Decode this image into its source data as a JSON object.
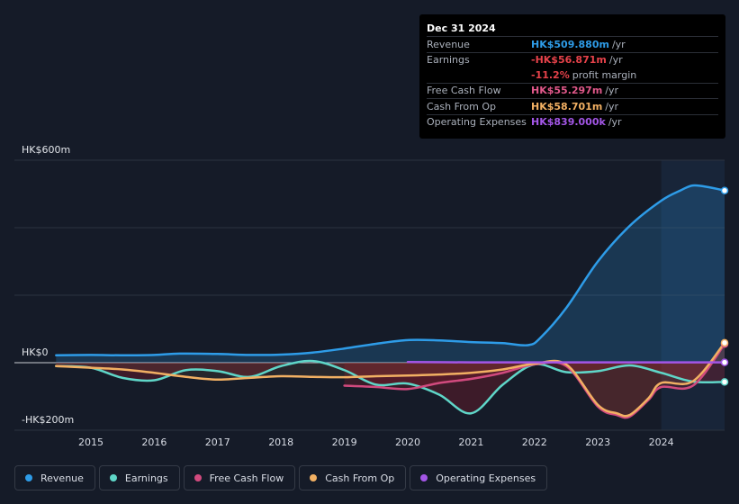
{
  "tooltip": {
    "date": "Dec 31 2024",
    "rows": [
      {
        "label": "Revenue",
        "value": "HK$509.880m",
        "unit": "/yr",
        "color": "#2e9ce8"
      },
      {
        "label": "Earnings",
        "value": "-HK$56.871m",
        "unit": "/yr",
        "color": "#e6424a"
      },
      {
        "label": "",
        "value": "-11.2%",
        "unit": "profit margin",
        "color": "#e6424a"
      },
      {
        "label": "Free Cash Flow",
        "value": "HK$55.297m",
        "unit": "/yr",
        "color": "#e0588a"
      },
      {
        "label": "Cash From Op",
        "value": "HK$58.701m",
        "unit": "/yr",
        "color": "#f2b063"
      },
      {
        "label": "Operating Expenses",
        "value": "HK$839.000k",
        "unit": "/yr",
        "color": "#a356e6"
      }
    ]
  },
  "axis": {
    "y_top": "HK$600m",
    "y_zero": "HK$0",
    "y_bottom": "-HK$200m"
  },
  "legend": [
    {
      "label": "Revenue",
      "color": "#2e9ce8"
    },
    {
      "label": "Earnings",
      "color": "#5fd6c8"
    },
    {
      "label": "Free Cash Flow",
      "color": "#d14a7e"
    },
    {
      "label": "Cash From Op",
      "color": "#f2b063"
    },
    {
      "label": "Operating Expenses",
      "color": "#a356e6"
    }
  ],
  "chart_data": {
    "type": "line",
    "title": "",
    "xlabel": "",
    "ylabel": "",
    "unit": "HK$m",
    "ylim": [
      -200,
      600
    ],
    "xlim": [
      2014.0,
      2025.0
    ],
    "x_ticks": [
      "2015",
      "2016",
      "2017",
      "2018",
      "2019",
      "2020",
      "2021",
      "2022",
      "2023",
      "2024"
    ],
    "highlight_from": 2024.0,
    "series": [
      {
        "name": "Revenue",
        "color": "#2e9ce8",
        "x": [
          2014.45,
          2015.0,
          2015.5,
          2016.0,
          2016.4,
          2017.0,
          2017.5,
          2018.0,
          2018.5,
          2019.0,
          2019.5,
          2020.0,
          2020.5,
          2021.0,
          2021.5,
          2021.9,
          2022.1,
          2022.5,
          2023.0,
          2023.5,
          2024.0,
          2024.3,
          2024.5,
          2024.75,
          2025.0
        ],
        "y": [
          22,
          23,
          22,
          23,
          27,
          26,
          23,
          24,
          30,
          42,
          56,
          67,
          66,
          61,
          58,
          52,
          75,
          162,
          300,
          405,
          480,
          510,
          525,
          520,
          510
        ]
      },
      {
        "name": "Earnings",
        "color": "#5fd6c8",
        "x": [
          2014.45,
          2015.0,
          2015.5,
          2016.0,
          2016.5,
          2017.0,
          2017.5,
          2018.0,
          2018.5,
          2019.0,
          2019.5,
          2020.0,
          2020.5,
          2021.0,
          2021.5,
          2022.0,
          2022.5,
          2023.0,
          2023.5,
          2024.0,
          2024.5,
          2025.0
        ],
        "y": [
          -10,
          -15,
          -45,
          -52,
          -22,
          -25,
          -42,
          -10,
          5,
          -22,
          -65,
          -62,
          -95,
          -150,
          -65,
          -5,
          -28,
          -25,
          -8,
          -30,
          -56,
          -57
        ]
      },
      {
        "name": "Free Cash Flow",
        "color": "#d14a7e",
        "x": [
          2019.0,
          2019.5,
          2020.0,
          2020.5,
          2021.0,
          2021.5,
          2022.0,
          2022.5,
          2023.0,
          2023.3,
          2023.5,
          2023.8,
          2024.0,
          2024.5,
          2025.0
        ],
        "y": [
          -68,
          -72,
          -78,
          -60,
          -48,
          -30,
          -5,
          -10,
          -130,
          -155,
          -160,
          -110,
          -72,
          -68,
          55
        ]
      },
      {
        "name": "Cash From Op",
        "color": "#f2b063",
        "x": [
          2014.45,
          2015.0,
          2015.5,
          2016.0,
          2016.5,
          2017.0,
          2017.5,
          2018.0,
          2018.5,
          2019.0,
          2019.5,
          2020.0,
          2020.5,
          2021.0,
          2021.5,
          2022.0,
          2022.5,
          2023.0,
          2023.3,
          2023.5,
          2023.8,
          2024.0,
          2024.5,
          2025.0
        ],
        "y": [
          -10,
          -15,
          -20,
          -30,
          -42,
          -50,
          -45,
          -40,
          -42,
          -43,
          -40,
          -38,
          -35,
          -30,
          -20,
          -3,
          -5,
          -125,
          -150,
          -155,
          -105,
          -60,
          -55,
          59
        ]
      },
      {
        "name": "Operating Expenses",
        "color": "#a356e6",
        "x": [
          2020.0,
          2021.0,
          2022.0,
          2023.0,
          2024.0,
          2025.0
        ],
        "y": [
          2,
          1,
          1,
          1,
          1,
          1
        ]
      }
    ]
  }
}
